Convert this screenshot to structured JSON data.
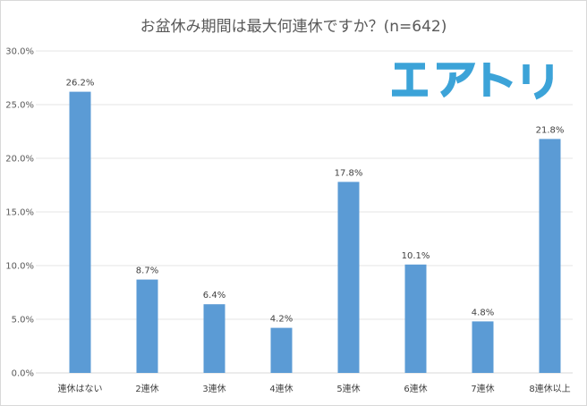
{
  "chart_data": {
    "type": "bar",
    "title": "お盆休み期間は最大何連休ですか？(n=642)",
    "categories": [
      "連休はない",
      "2連休",
      "3連休",
      "4連休",
      "5連休",
      "6連休",
      "7連休",
      "8連休以上"
    ],
    "values": [
      26.2,
      8.7,
      6.4,
      4.2,
      17.8,
      10.1,
      4.8,
      21.8
    ],
    "data_labels": [
      "26.2%",
      "8.7%",
      "6.4%",
      "4.2%",
      "17.8%",
      "10.1%",
      "4.8%",
      "21.8%"
    ],
    "y_ticks": [
      {
        "value": 0,
        "label": "0.0%"
      },
      {
        "value": 5,
        "label": "5.0%"
      },
      {
        "value": 10,
        "label": "10.0%"
      },
      {
        "value": 15,
        "label": "15.0%"
      },
      {
        "value": 20,
        "label": "20.0%"
      },
      {
        "value": 25,
        "label": "25.0%"
      },
      {
        "value": 30,
        "label": "30.0%"
      }
    ],
    "ylim": [
      0,
      30
    ],
    "xlabel": "",
    "ylabel": "",
    "grid": true,
    "bar_color": "#5b9bd5"
  },
  "logo": {
    "text": "エアトリ",
    "color": "#3ca3d8"
  }
}
